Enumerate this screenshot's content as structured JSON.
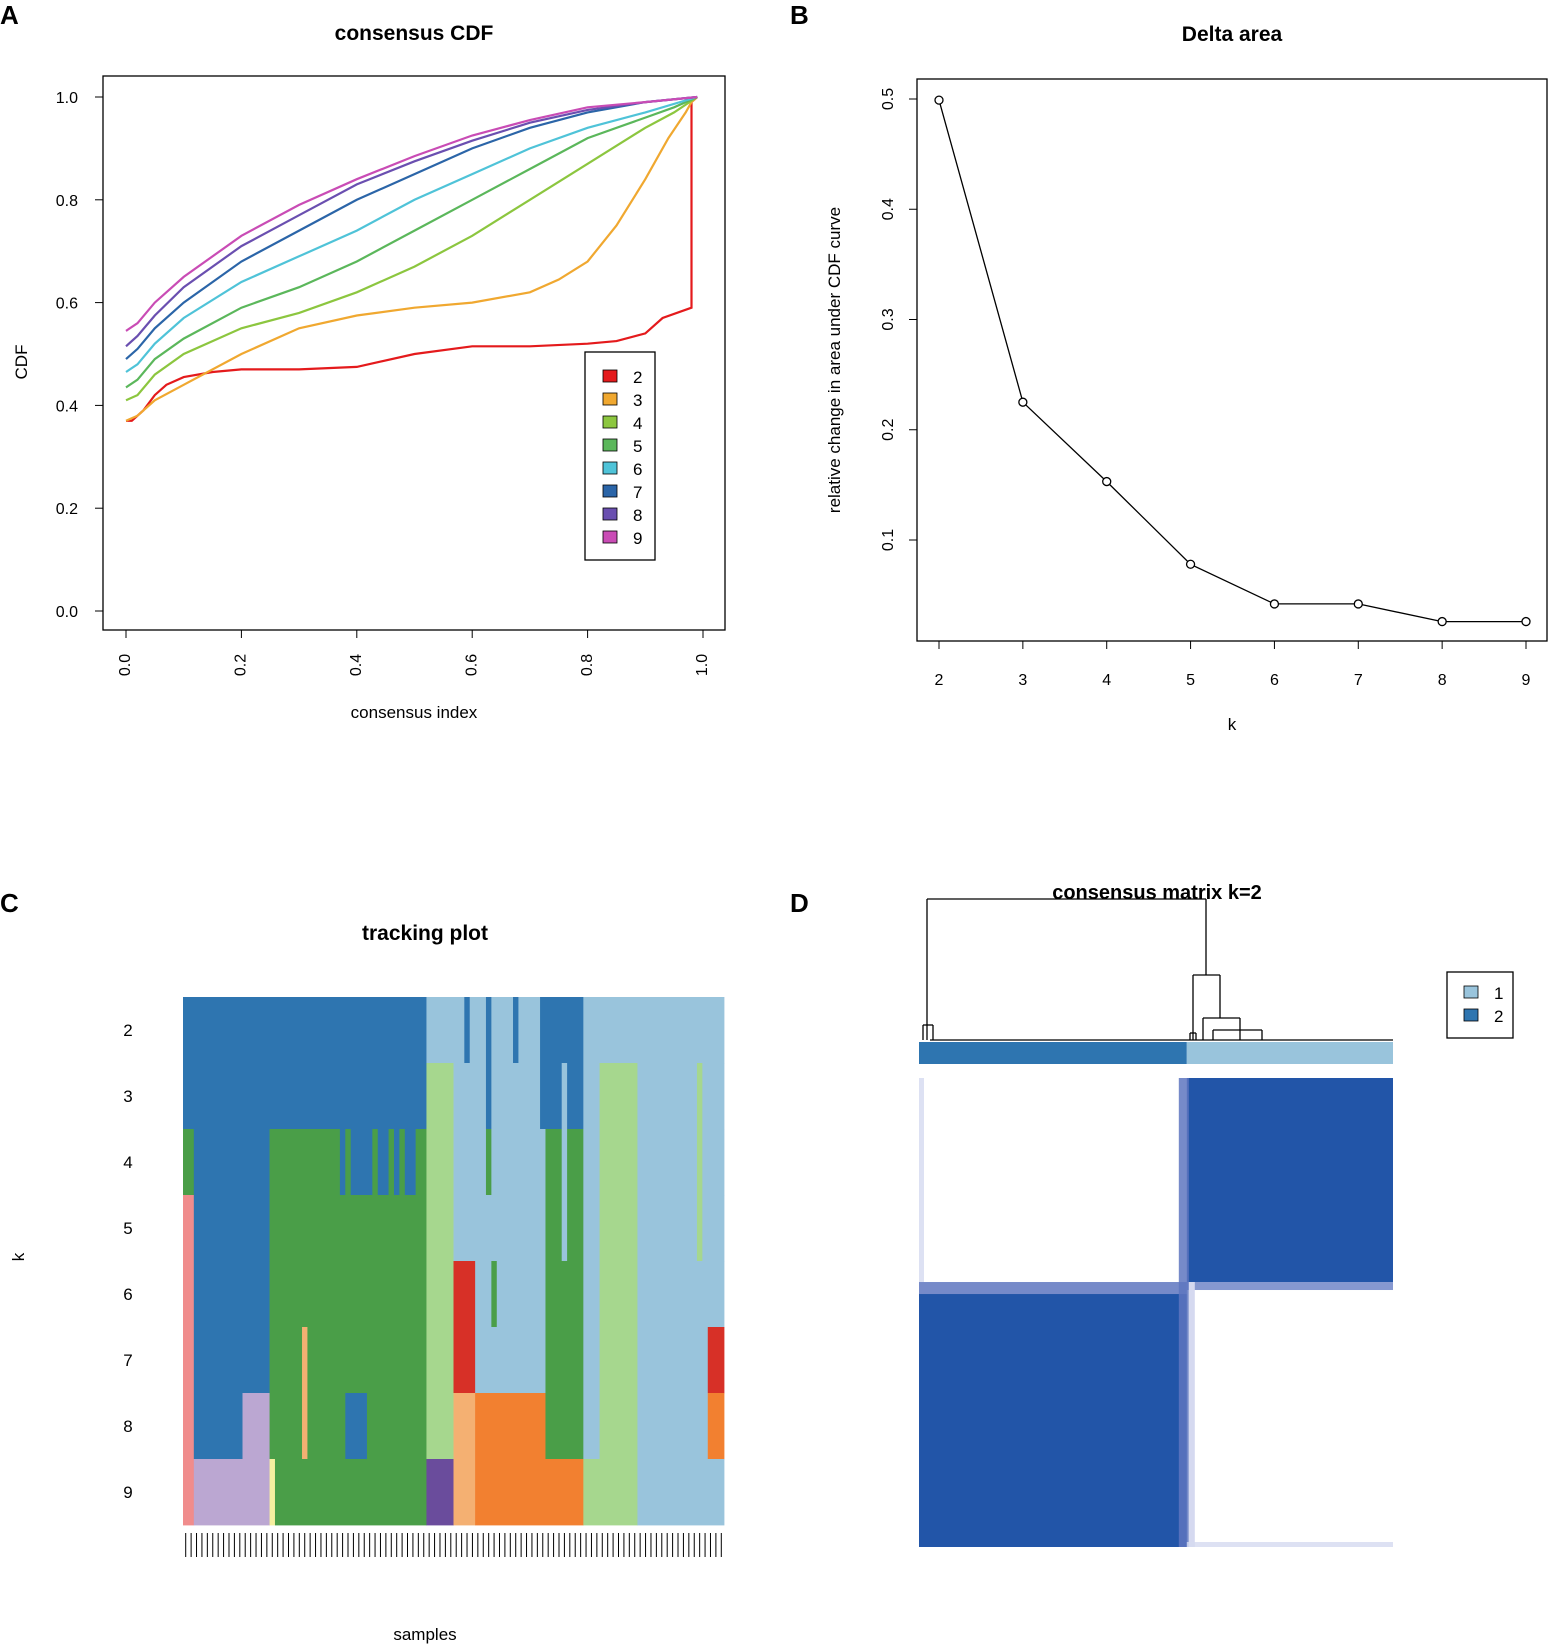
{
  "panels": {
    "a": {
      "letter": "A"
    },
    "b": {
      "letter": "B"
    },
    "c": {
      "letter": "C"
    },
    "d": {
      "letter": "D"
    }
  },
  "chart_data": [
    {
      "id": "cdf",
      "type": "line",
      "title": "consensus CDF",
      "xlabel": "consensus index",
      "ylabel": "CDF",
      "xlim": [
        0,
        1
      ],
      "ylim": [
        0,
        1
      ],
      "xticks": [
        "0.0",
        "0.2",
        "0.4",
        "0.6",
        "0.8",
        "1.0"
      ],
      "yticks": [
        "0.0",
        "0.2",
        "0.4",
        "0.6",
        "0.8",
        "1.0"
      ],
      "legend_position": "right",
      "series": [
        {
          "name": "2",
          "color": "#E41A1C",
          "points": [
            [
              0,
              0.37
            ],
            [
              0.01,
              0.37
            ],
            [
              0.03,
              0.39
            ],
            [
              0.05,
              0.42
            ],
            [
              0.07,
              0.44
            ],
            [
              0.1,
              0.455
            ],
            [
              0.15,
              0.465
            ],
            [
              0.2,
              0.47
            ],
            [
              0.3,
              0.47
            ],
            [
              0.4,
              0.475
            ],
            [
              0.5,
              0.5
            ],
            [
              0.6,
              0.515
            ],
            [
              0.7,
              0.515
            ],
            [
              0.8,
              0.52
            ],
            [
              0.85,
              0.525
            ],
            [
              0.9,
              0.54
            ],
            [
              0.93,
              0.57
            ],
            [
              0.98,
              0.59
            ],
            [
              0.98,
              0.99
            ],
            [
              0.99,
              1.0
            ]
          ]
        },
        {
          "name": "3",
          "color": "#F0A830",
          "points": [
            [
              0,
              0.37
            ],
            [
              0.02,
              0.38
            ],
            [
              0.05,
              0.41
            ],
            [
              0.1,
              0.44
            ],
            [
              0.2,
              0.5
            ],
            [
              0.3,
              0.55
            ],
            [
              0.4,
              0.575
            ],
            [
              0.5,
              0.59
            ],
            [
              0.6,
              0.6
            ],
            [
              0.7,
              0.62
            ],
            [
              0.75,
              0.645
            ],
            [
              0.8,
              0.68
            ],
            [
              0.85,
              0.75
            ],
            [
              0.9,
              0.84
            ],
            [
              0.94,
              0.92
            ],
            [
              0.97,
              0.97
            ],
            [
              0.98,
              0.99
            ],
            [
              0.99,
              1.0
            ]
          ]
        },
        {
          "name": "4",
          "color": "#8CC63F",
          "points": [
            [
              0,
              0.41
            ],
            [
              0.02,
              0.42
            ],
            [
              0.05,
              0.46
            ],
            [
              0.1,
              0.5
            ],
            [
              0.2,
              0.55
            ],
            [
              0.3,
              0.58
            ],
            [
              0.4,
              0.62
            ],
            [
              0.5,
              0.67
            ],
            [
              0.6,
              0.73
            ],
            [
              0.7,
              0.8
            ],
            [
              0.8,
              0.87
            ],
            [
              0.9,
              0.94
            ],
            [
              0.95,
              0.97
            ],
            [
              0.99,
              1.0
            ]
          ]
        },
        {
          "name": "5",
          "color": "#5BB75B",
          "points": [
            [
              0,
              0.435
            ],
            [
              0.02,
              0.45
            ],
            [
              0.05,
              0.49
            ],
            [
              0.1,
              0.53
            ],
            [
              0.2,
              0.59
            ],
            [
              0.3,
              0.63
            ],
            [
              0.4,
              0.68
            ],
            [
              0.5,
              0.74
            ],
            [
              0.6,
              0.8
            ],
            [
              0.7,
              0.86
            ],
            [
              0.8,
              0.92
            ],
            [
              0.9,
              0.96
            ],
            [
              0.95,
              0.98
            ],
            [
              0.99,
              1.0
            ]
          ]
        },
        {
          "name": "6",
          "color": "#4FC3D8",
          "points": [
            [
              0,
              0.465
            ],
            [
              0.02,
              0.48
            ],
            [
              0.05,
              0.52
            ],
            [
              0.1,
              0.57
            ],
            [
              0.2,
              0.64
            ],
            [
              0.3,
              0.69
            ],
            [
              0.4,
              0.74
            ],
            [
              0.5,
              0.8
            ],
            [
              0.6,
              0.85
            ],
            [
              0.7,
              0.9
            ],
            [
              0.8,
              0.94
            ],
            [
              0.9,
              0.97
            ],
            [
              0.99,
              1.0
            ]
          ]
        },
        {
          "name": "7",
          "color": "#2B65A8",
          "points": [
            [
              0,
              0.49
            ],
            [
              0.02,
              0.51
            ],
            [
              0.05,
              0.55
            ],
            [
              0.1,
              0.6
            ],
            [
              0.2,
              0.68
            ],
            [
              0.3,
              0.74
            ],
            [
              0.4,
              0.8
            ],
            [
              0.5,
              0.85
            ],
            [
              0.6,
              0.9
            ],
            [
              0.7,
              0.94
            ],
            [
              0.8,
              0.97
            ],
            [
              0.9,
              0.99
            ],
            [
              0.99,
              1.0
            ]
          ]
        },
        {
          "name": "8",
          "color": "#6A4FB0",
          "points": [
            [
              0,
              0.515
            ],
            [
              0.02,
              0.535
            ],
            [
              0.05,
              0.575
            ],
            [
              0.1,
              0.63
            ],
            [
              0.2,
              0.71
            ],
            [
              0.3,
              0.77
            ],
            [
              0.4,
              0.83
            ],
            [
              0.5,
              0.875
            ],
            [
              0.6,
              0.915
            ],
            [
              0.7,
              0.95
            ],
            [
              0.8,
              0.975
            ],
            [
              0.9,
              0.99
            ],
            [
              0.99,
              1.0
            ]
          ]
        },
        {
          "name": "9",
          "color": "#C94CB5",
          "points": [
            [
              0,
              0.545
            ],
            [
              0.02,
              0.56
            ],
            [
              0.05,
              0.6
            ],
            [
              0.1,
              0.65
            ],
            [
              0.2,
              0.73
            ],
            [
              0.3,
              0.79
            ],
            [
              0.4,
              0.84
            ],
            [
              0.5,
              0.885
            ],
            [
              0.6,
              0.925
            ],
            [
              0.7,
              0.955
            ],
            [
              0.8,
              0.98
            ],
            [
              0.9,
              0.99
            ],
            [
              0.99,
              1.0
            ]
          ]
        }
      ]
    },
    {
      "id": "delta",
      "type": "line",
      "title": "Delta area",
      "xlabel": "k",
      "ylabel": "relative change in area under CDF curve",
      "xlim": [
        2,
        9
      ],
      "ylim": [
        0.02,
        0.52
      ],
      "xticks": [
        "2",
        "3",
        "4",
        "5",
        "6",
        "7",
        "8",
        "9"
      ],
      "yticks": [
        "0.1",
        "0.2",
        "0.3",
        "0.4",
        "0.5"
      ],
      "x": [
        2,
        3,
        4,
        5,
        6,
        7,
        8,
        9
      ],
      "y": [
        0.499,
        0.225,
        0.153,
        0.078,
        0.042,
        0.042,
        0.026,
        0.026
      ]
    },
    {
      "id": "tracking",
      "type": "heatmap",
      "title": "tracking plot",
      "xlabel": "samples",
      "ylabel": "k",
      "rows": [
        "2",
        "3",
        "4",
        "5",
        "6",
        "7",
        "8",
        "9"
      ],
      "n_samples": 100,
      "segments": [
        [
          [
            0,
            45,
            "#2E75B0"
          ],
          [
            45,
            52,
            "#99C4DC"
          ],
          [
            52,
            53,
            "#2E75B0"
          ],
          [
            53,
            56,
            "#99C4DC"
          ],
          [
            56,
            57,
            "#2E75B0"
          ],
          [
            57,
            61,
            "#99C4DC"
          ],
          [
            61,
            62,
            "#2E75B0"
          ],
          [
            62,
            66,
            "#99C4DC"
          ],
          [
            66,
            74,
            "#2E75B0"
          ],
          [
            74,
            100,
            "#99C4DC"
          ]
        ],
        [
          [
            0,
            45,
            "#2E75B0"
          ],
          [
            45,
            50,
            "#A6D78E"
          ],
          [
            50,
            56,
            "#99C4DC"
          ],
          [
            56,
            57,
            "#2E75B0"
          ],
          [
            57,
            66,
            "#99C4DC"
          ],
          [
            66,
            70,
            "#2E75B0"
          ],
          [
            70,
            71,
            "#99C4DC"
          ],
          [
            71,
            74,
            "#2E75B0"
          ],
          [
            74,
            77,
            "#99C4DC"
          ],
          [
            77,
            84,
            "#A6D78E"
          ],
          [
            84,
            95,
            "#99C4DC"
          ],
          [
            95,
            96,
            "#A6D78E"
          ],
          [
            96,
            100,
            "#99C4DC"
          ]
        ],
        [
          [
            0,
            2,
            "#4A9E48"
          ],
          [
            2,
            16,
            "#2E75B0"
          ],
          [
            16,
            29,
            "#4A9E48"
          ],
          [
            29,
            30,
            "#2E75B0"
          ],
          [
            30,
            31,
            "#4A9E48"
          ],
          [
            31,
            35,
            "#2E75B0"
          ],
          [
            35,
            36,
            "#4A9E48"
          ],
          [
            36,
            38,
            "#2E75B0"
          ],
          [
            38,
            39,
            "#4A9E48"
          ],
          [
            39,
            40,
            "#2E75B0"
          ],
          [
            40,
            41,
            "#4A9E48"
          ],
          [
            41,
            43,
            "#2E75B0"
          ],
          [
            43,
            45,
            "#4A9E48"
          ],
          [
            45,
            50,
            "#A6D78E"
          ],
          [
            50,
            56,
            "#99C4DC"
          ],
          [
            56,
            57,
            "#4A9E48"
          ],
          [
            57,
            67,
            "#99C4DC"
          ],
          [
            67,
            70,
            "#4A9E48"
          ],
          [
            70,
            71,
            "#99C4DC"
          ],
          [
            71,
            74,
            "#4A9E48"
          ],
          [
            74,
            77,
            "#99C4DC"
          ],
          [
            77,
            84,
            "#A6D78E"
          ],
          [
            84,
            95,
            "#99C4DC"
          ],
          [
            95,
            96,
            "#A6D78E"
          ],
          [
            96,
            100,
            "#99C4DC"
          ]
        ],
        [
          [
            0,
            2,
            "#F08C8C"
          ],
          [
            2,
            16,
            "#2E75B0"
          ],
          [
            16,
            45,
            "#4A9E48"
          ],
          [
            45,
            50,
            "#A6D78E"
          ],
          [
            50,
            67,
            "#99C4DC"
          ],
          [
            67,
            70,
            "#4A9E48"
          ],
          [
            70,
            71,
            "#99C4DC"
          ],
          [
            71,
            74,
            "#4A9E48"
          ],
          [
            74,
            77,
            "#99C4DC"
          ],
          [
            77,
            84,
            "#A6D78E"
          ],
          [
            84,
            95,
            "#99C4DC"
          ],
          [
            95,
            96,
            "#A6D78E"
          ],
          [
            96,
            100,
            "#99C4DC"
          ]
        ],
        [
          [
            0,
            2,
            "#F08C8C"
          ],
          [
            2,
            16,
            "#2E75B0"
          ],
          [
            16,
            45,
            "#4A9E48"
          ],
          [
            45,
            50,
            "#A6D78E"
          ],
          [
            50,
            54,
            "#D73027"
          ],
          [
            54,
            57,
            "#99C4DC"
          ],
          [
            57,
            58,
            "#4A9E48"
          ],
          [
            58,
            67,
            "#99C4DC"
          ],
          [
            67,
            74,
            "#4A9E48"
          ],
          [
            74,
            77,
            "#99C4DC"
          ],
          [
            77,
            84,
            "#A6D78E"
          ],
          [
            84,
            100,
            "#99C4DC"
          ]
        ],
        [
          [
            0,
            2,
            "#F08C8C"
          ],
          [
            2,
            16,
            "#2E75B0"
          ],
          [
            16,
            22,
            "#4A9E48"
          ],
          [
            22,
            23,
            "#F4B072"
          ],
          [
            23,
            45,
            "#4A9E48"
          ],
          [
            45,
            50,
            "#A6D78E"
          ],
          [
            50,
            54,
            "#D73027"
          ],
          [
            54,
            67,
            "#99C4DC"
          ],
          [
            67,
            74,
            "#4A9E48"
          ],
          [
            74,
            77,
            "#99C4DC"
          ],
          [
            77,
            84,
            "#A6D78E"
          ],
          [
            84,
            97,
            "#99C4DC"
          ],
          [
            97,
            100,
            "#D73027"
          ]
        ],
        [
          [
            0,
            2,
            "#F08C8C"
          ],
          [
            2,
            11,
            "#2E75B0"
          ],
          [
            11,
            16,
            "#BBA7D2"
          ],
          [
            16,
            22,
            "#4A9E48"
          ],
          [
            22,
            23,
            "#F4B072"
          ],
          [
            23,
            30,
            "#4A9E48"
          ],
          [
            30,
            34,
            "#2E75B0"
          ],
          [
            34,
            45,
            "#4A9E48"
          ],
          [
            45,
            50,
            "#A6D78E"
          ],
          [
            50,
            54,
            "#F4B072"
          ],
          [
            54,
            67,
            "#F28030"
          ],
          [
            67,
            74,
            "#4A9E48"
          ],
          [
            74,
            77,
            "#99C4DC"
          ],
          [
            77,
            84,
            "#A6D78E"
          ],
          [
            84,
            97,
            "#99C4DC"
          ],
          [
            97,
            100,
            "#F28030"
          ]
        ],
        [
          [
            0,
            2,
            "#F08C8C"
          ],
          [
            2,
            16,
            "#BBA7D2"
          ],
          [
            16,
            17,
            "#F6F0A0"
          ],
          [
            17,
            45,
            "#4A9E48"
          ],
          [
            45,
            50,
            "#6A4C9C"
          ],
          [
            50,
            54,
            "#F4B072"
          ],
          [
            54,
            74,
            "#F28030"
          ],
          [
            74,
            84,
            "#A6D78E"
          ],
          [
            84,
            100,
            "#99C4DC"
          ]
        ]
      ]
    },
    {
      "id": "consensus",
      "type": "heatmap",
      "title": "consensus matrix k=2",
      "legend": [
        {
          "label": "1",
          "color": "#99C4DC"
        },
        {
          "label": "2",
          "color": "#2E75B0"
        }
      ],
      "cluster_fraction": {
        "2": 0.565,
        "1": 0.435
      },
      "high_color": "#2255A8",
      "low_color": "#FFFFFF"
    }
  ]
}
